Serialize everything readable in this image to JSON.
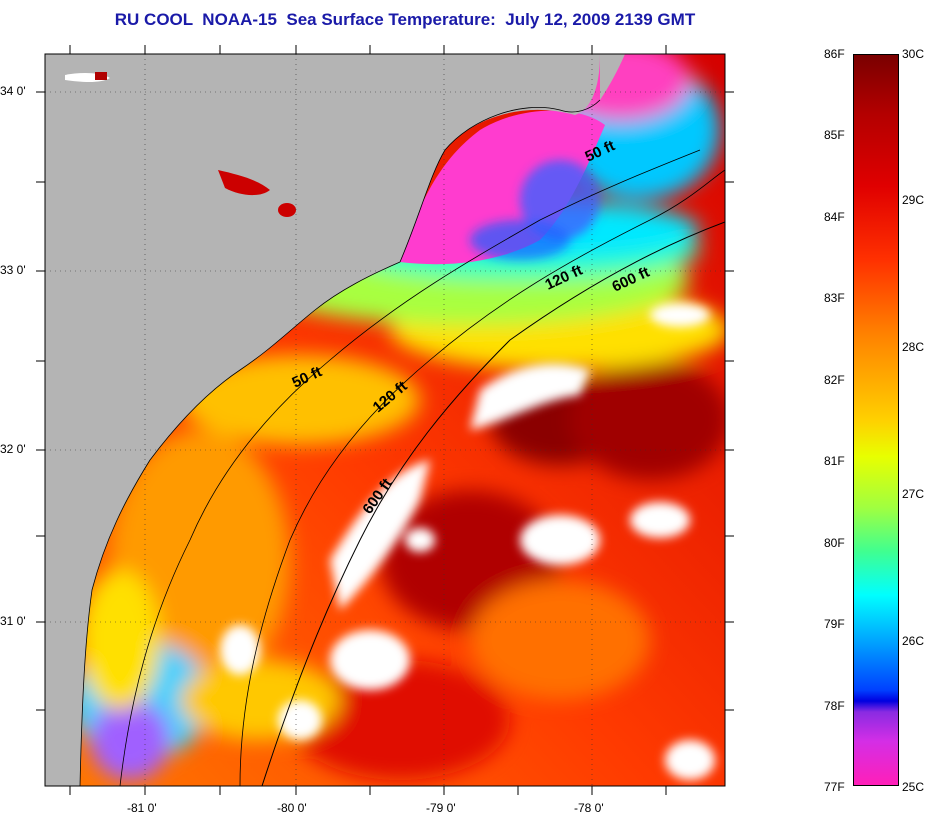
{
  "title": "RU COOL  NOAA-15  Sea Surface Temperature:  July 12, 2009 2139 GMT",
  "map": {
    "lat_ticks": [
      {
        "value": 34,
        "label": "34 0'"
      },
      {
        "value": 33,
        "label": "33 0'"
      },
      {
        "value": 32,
        "label": "32 0'"
      },
      {
        "value": 31,
        "label": "31 0'"
      }
    ],
    "lon_ticks": [
      {
        "value": -81,
        "label": "-81 0'"
      },
      {
        "value": -80,
        "label": "-80 0'"
      },
      {
        "value": -79,
        "label": "-79 0'"
      },
      {
        "value": -78,
        "label": "-78 0'"
      }
    ],
    "isobath_labels": [
      {
        "text": "50 ft"
      },
      {
        "text": "120 ft"
      },
      {
        "text": "600 ft"
      },
      {
        "text": "50 ft"
      },
      {
        "text": "120 ft"
      },
      {
        "text": "600 ft"
      }
    ],
    "colors": {
      "land": "#b4b4b4",
      "cloud": "#ffffff",
      "cold": "#ff33cc",
      "warm": "#8b0000",
      "title": "#1a1aa8"
    }
  },
  "colorbar": {
    "fahrenheit": [
      "86F",
      "85F",
      "84F",
      "83F",
      "82F",
      "81F",
      "80F",
      "79F",
      "78F",
      "77F"
    ],
    "celsius": [
      "30C",
      "29C",
      "28C",
      "27C",
      "26C",
      "25C"
    ]
  }
}
